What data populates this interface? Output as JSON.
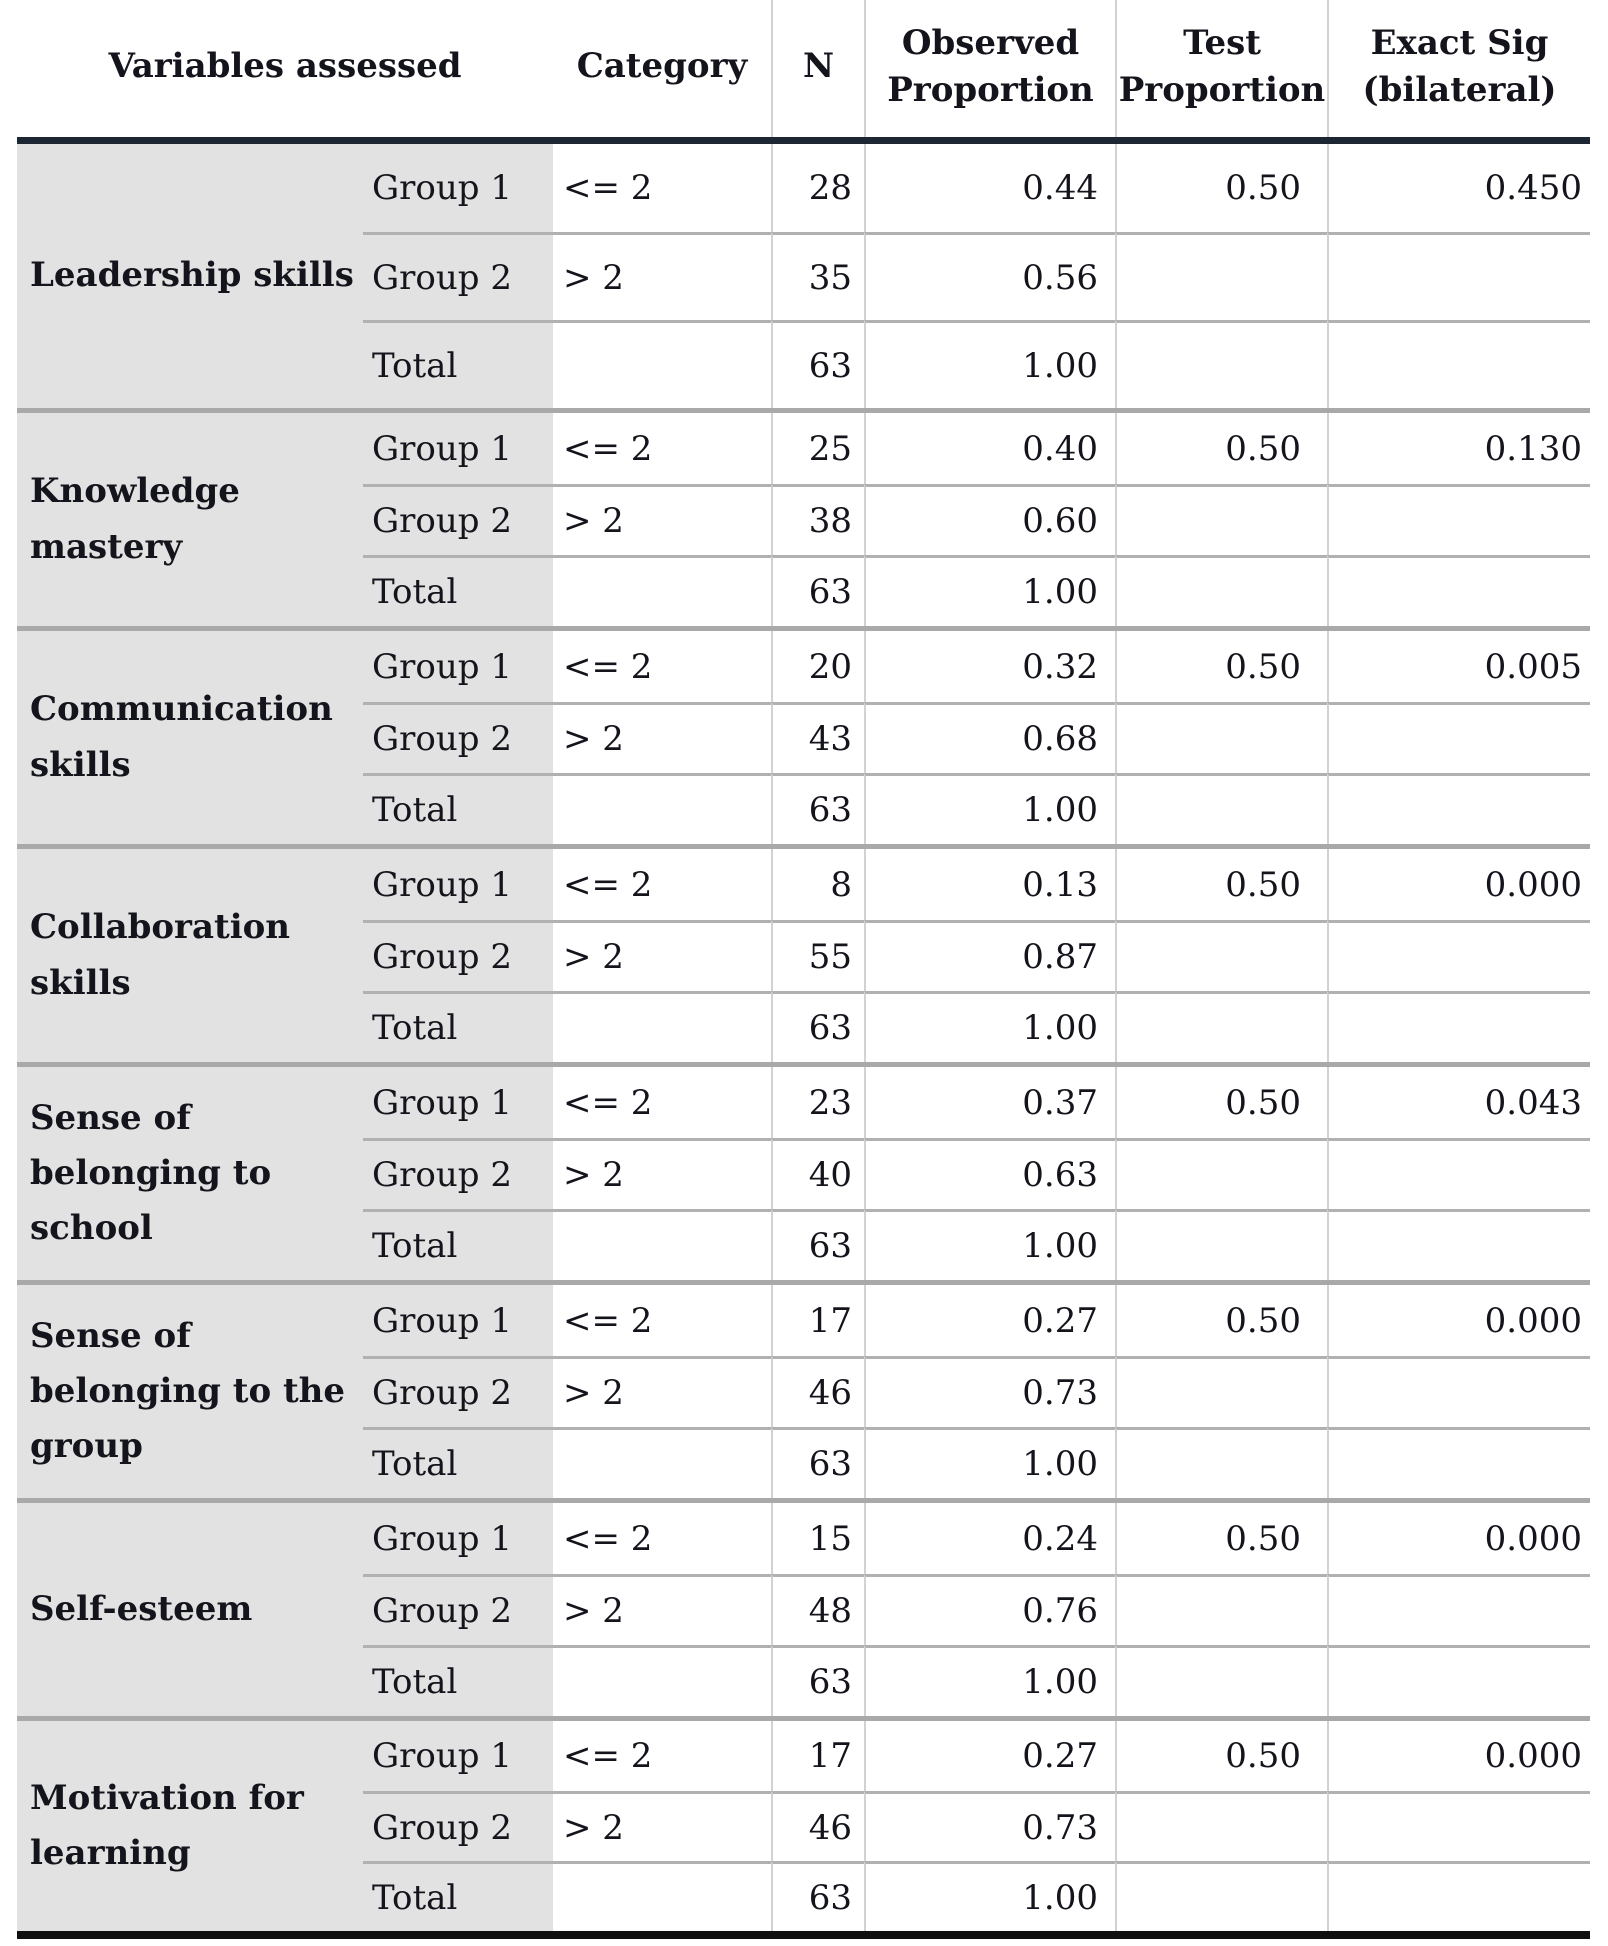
{
  "document": {
    "type": "binomial-test-results-table",
    "header": {
      "variables_assessed": "Variables assessed",
      "category": "Category",
      "n": "N",
      "observed_proportion": "Observed Proportion",
      "test_proportion": "Test Proportion",
      "exact_sig_bilateral": "Exact Sig (bilateral)"
    },
    "blocks": [
      {
        "variable": "Leadership skills",
        "rows": [
          {
            "group": "Group 1",
            "category": "<= 2",
            "n": "28",
            "observed": "0.44",
            "test": "0.50",
            "exact": "0.450"
          },
          {
            "group": "Group 2",
            "category": "> 2",
            "n": "35",
            "observed": "0.56",
            "test": "",
            "exact": ""
          },
          {
            "group": "Total",
            "category": "",
            "n": "63",
            "observed": "1.00",
            "test": "",
            "exact": ""
          }
        ]
      },
      {
        "variable": "Knowledge mastery",
        "rows": [
          {
            "group": "Group 1",
            "category": "<= 2",
            "n": "25",
            "observed": "0.40",
            "test": "0.50",
            "exact": "0.130"
          },
          {
            "group": "Group 2",
            "category": "> 2",
            "n": "38",
            "observed": "0.60",
            "test": "",
            "exact": ""
          },
          {
            "group": "Total",
            "category": "",
            "n": "63",
            "observed": "1.00",
            "test": "",
            "exact": ""
          }
        ]
      },
      {
        "variable": "Communication skills",
        "rows": [
          {
            "group": "Group 1",
            "category": "<= 2",
            "n": "20",
            "observed": "0.32",
            "test": "0.50",
            "exact": "0.005"
          },
          {
            "group": "Group 2",
            "category": "> 2",
            "n": "43",
            "observed": "0.68",
            "test": "",
            "exact": ""
          },
          {
            "group": "Total",
            "category": "",
            "n": "63",
            "observed": "1.00",
            "test": "",
            "exact": ""
          }
        ]
      },
      {
        "variable": "Collaboration skills",
        "rows": [
          {
            "group": "Group 1",
            "category": "<= 2",
            "n": "8",
            "observed": "0.13",
            "test": "0.50",
            "exact": "0.000"
          },
          {
            "group": "Group 2",
            "category": "> 2",
            "n": "55",
            "observed": "0.87",
            "test": "",
            "exact": ""
          },
          {
            "group": "Total",
            "category": "",
            "n": "63",
            "observed": "1.00",
            "test": "",
            "exact": ""
          }
        ]
      },
      {
        "variable": "Sense of belonging to school",
        "rows": [
          {
            "group": "Group 1",
            "category": "<= 2",
            "n": "23",
            "observed": "0.37",
            "test": "0.50",
            "exact": "0.043"
          },
          {
            "group": "Group 2",
            "category": "> 2",
            "n": "40",
            "observed": "0.63",
            "test": "",
            "exact": ""
          },
          {
            "group": "Total",
            "category": "",
            "n": "63",
            "observed": "1.00",
            "test": "",
            "exact": ""
          }
        ]
      },
      {
        "variable": "Sense of belonging to the group",
        "rows": [
          {
            "group": "Group 1",
            "category": "<= 2",
            "n": "17",
            "observed": "0.27",
            "test": "0.50",
            "exact": "0.000"
          },
          {
            "group": "Group 2",
            "category": "> 2",
            "n": "46",
            "observed": "0.73",
            "test": "",
            "exact": ""
          },
          {
            "group": "Total",
            "category": "",
            "n": "63",
            "observed": "1.00",
            "test": "",
            "exact": ""
          }
        ]
      },
      {
        "variable": "Self-esteem",
        "rows": [
          {
            "group": "Group 1",
            "category": "<= 2",
            "n": "15",
            "observed": "0.24",
            "test": "0.50",
            "exact": "0.000"
          },
          {
            "group": "Group 2",
            "category": "> 2",
            "n": "48",
            "observed": "0.76",
            "test": "",
            "exact": ""
          },
          {
            "group": "Total",
            "category": "",
            "n": "63",
            "observed": "1.00",
            "test": "",
            "exact": ""
          }
        ]
      },
      {
        "variable": "Motivation for learning",
        "rows": [
          {
            "group": "Group 1",
            "category": "<= 2",
            "n": "17",
            "observed": "0.27",
            "test": "0.50",
            "exact": "0.000"
          },
          {
            "group": "Group 2",
            "category": "> 2",
            "n": "46",
            "observed": "0.73",
            "test": "",
            "exact": ""
          },
          {
            "group": "Total",
            "category": "",
            "n": "63",
            "observed": "1.00",
            "test": "",
            "exact": ""
          }
        ]
      }
    ],
    "colors": {
      "row_label_bg": "#e2e2e2",
      "header_rule": "#1c2733",
      "bottom_rule": "#101010",
      "block_divider": "#a9a9a9",
      "row_divider": "#b1b1b1",
      "column_divider": "#d2d2d2",
      "text": "#14151c"
    }
  }
}
